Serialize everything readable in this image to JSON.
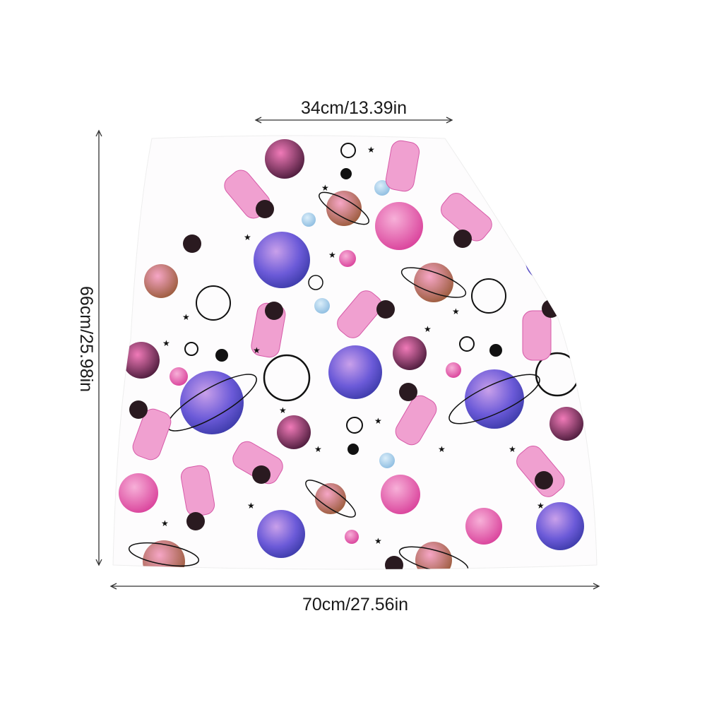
{
  "dimensions": {
    "top_width": "34cm/13.39in",
    "height": "66cm/25.98in",
    "bottom_width": "70cm/27.56in"
  }
}
